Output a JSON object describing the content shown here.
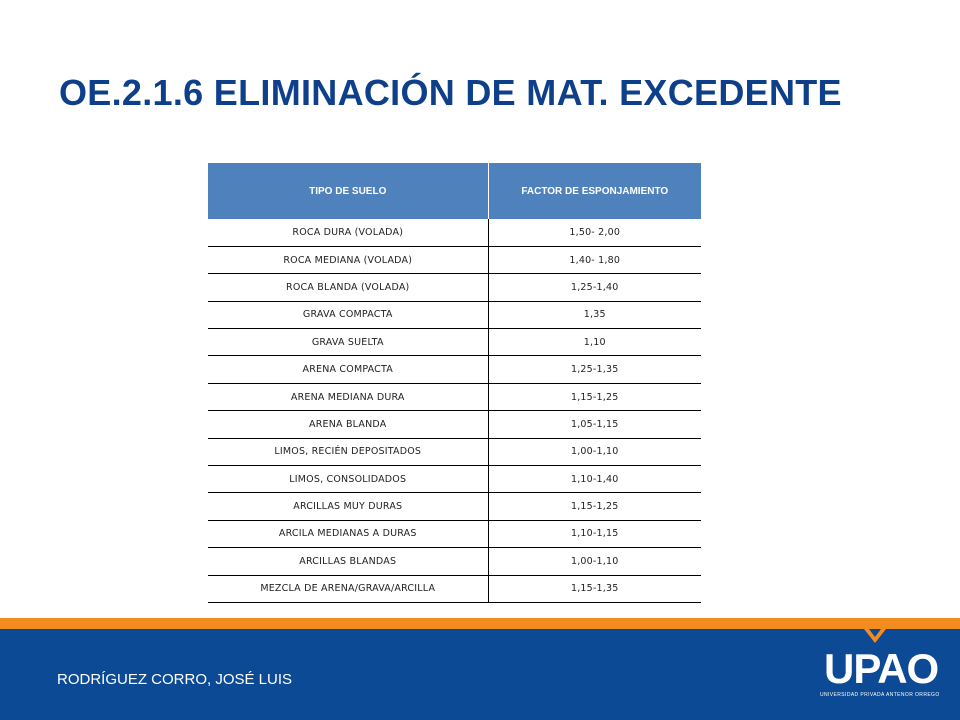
{
  "slide": {
    "title": "OE.2.1.6 ELIMINACIÓN DE MAT. EXCEDENTE",
    "author": "RODRÍGUEZ CORRO, JOSÉ LUIS"
  },
  "table": {
    "headers": [
      "TIPO DE SUELO",
      "FACTOR DE ESPONJAMIENTO"
    ],
    "rows": [
      [
        "ROCA DURA (VOLADA)",
        "1,50- 2,00"
      ],
      [
        "ROCA MEDIANA (VOLADA)",
        "1,40- 1,80"
      ],
      [
        "ROCA BLANDA (VOLADA)",
        "1,25-1,40"
      ],
      [
        "GRAVA COMPACTA",
        "1,35"
      ],
      [
        "GRAVA SUELTA",
        "1,10"
      ],
      [
        "ARENA COMPACTA",
        "1,25-1,35"
      ],
      [
        "ARENA MEDIANA DURA",
        "1,15-1,25"
      ],
      [
        "ARENA BLANDA",
        "1,05-1,15"
      ],
      [
        "LIMOS, RECIÉN DEPOSITADOS",
        "1,00-1,10"
      ],
      [
        "LIMOS, CONSOLIDADOS",
        "1,10-1,40"
      ],
      [
        "ARCILLAS MUY DURAS",
        "1,15-1,25"
      ],
      [
        "ARCILA MEDIANAS A DURAS",
        "1,10-1,15"
      ],
      [
        "ARCILLAS BLANDAS",
        "1,00-1,10"
      ],
      [
        "MEZCLA DE ARENA/GRAVA/ARCILLA",
        "1,15-1,35"
      ]
    ]
  },
  "logo": {
    "text": "UPAO",
    "subtitle": "UNIVERSIDAD PRIVADA ANTENOR ORREGO"
  },
  "colors": {
    "title": "#0d3f8a",
    "header_bg": "#4f81bd",
    "footer_bg": "#0d4a95",
    "accent": "#f28c1e"
  }
}
